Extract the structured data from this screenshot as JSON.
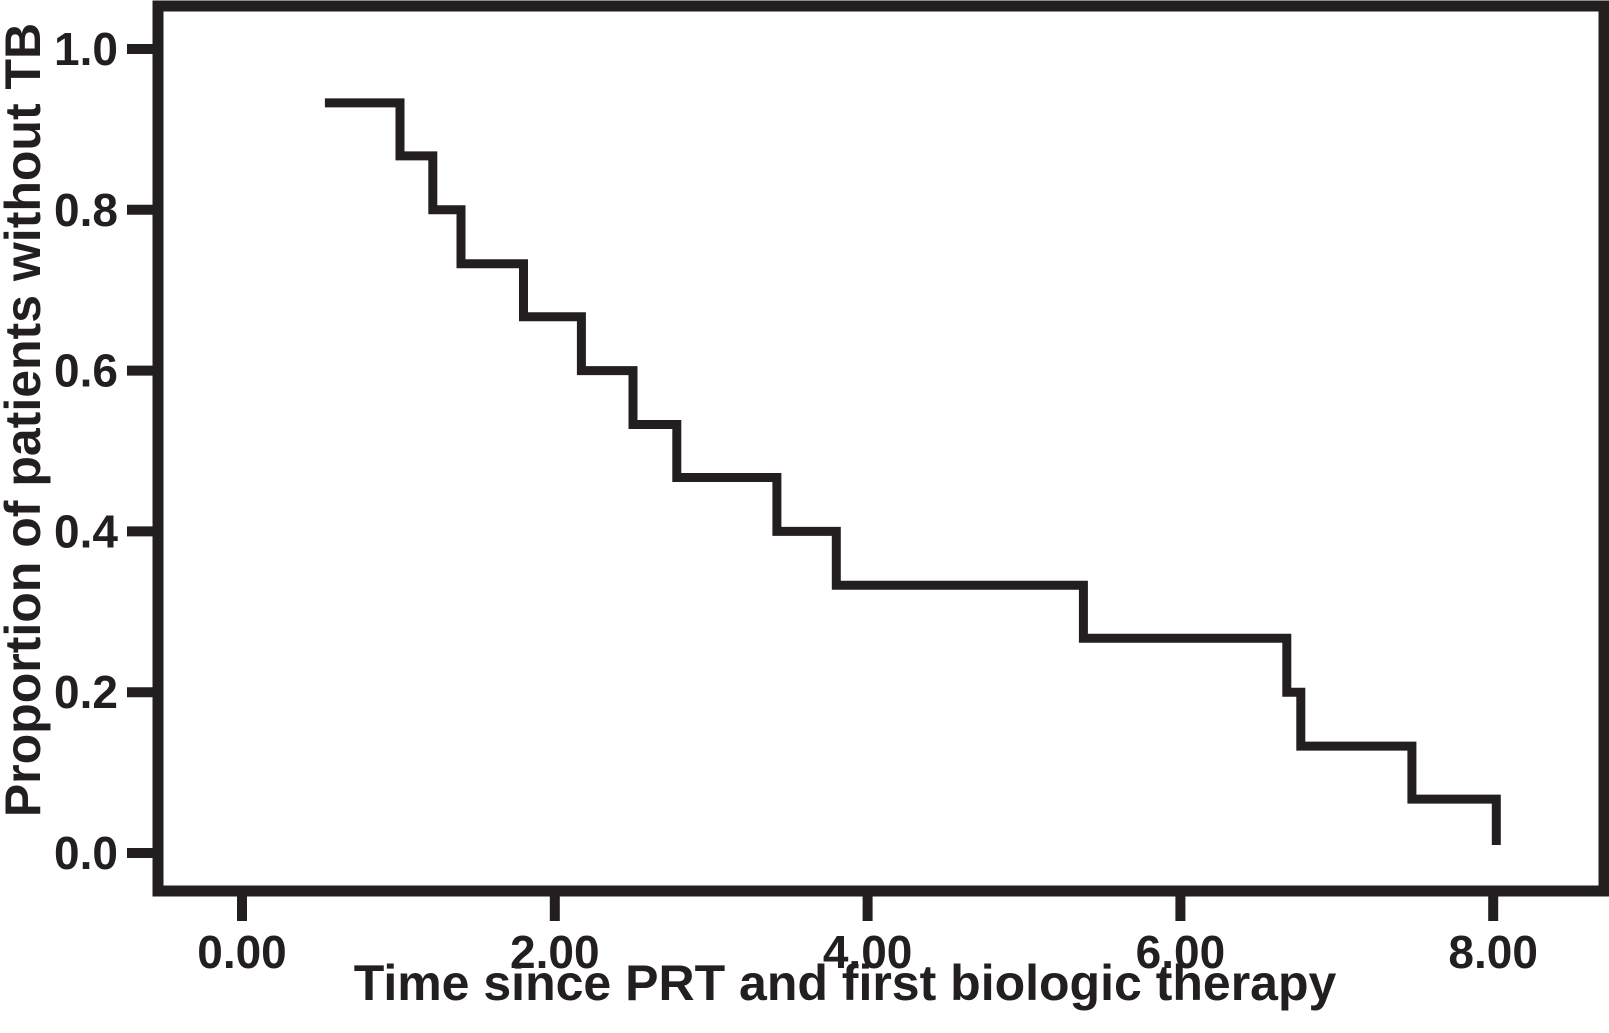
{
  "figure": {
    "background_color": "#ffffff",
    "frame_color": "#231f20",
    "curve_color": "#231f20"
  },
  "chart_data": {
    "type": "line",
    "subtype": "kaplan-meier-step",
    "title": "",
    "xlabel": "Time since PRT and first biologic therapy",
    "ylabel": "Proportion of patients without TB",
    "xlim": [
      -0.55,
      8.7
    ],
    "ylim": [
      -0.05,
      1.06
    ],
    "x_ticks": [
      0,
      2,
      4,
      6,
      8
    ],
    "x_tick_labels": [
      "0.00",
      "2.00",
      "4.00",
      "6.00",
      "8.00"
    ],
    "y_ticks": [
      0.0,
      0.2,
      0.4,
      0.6,
      0.8,
      1.0
    ],
    "y_tick_labels": [
      "0.0",
      "0.2",
      "0.4",
      "0.6",
      "0.8",
      "1.0"
    ],
    "grid": false,
    "legend": false,
    "series": [
      {
        "name": "Proportion of patients without TB",
        "start": {
          "x": 0.53,
          "y": 0.933
        },
        "steps": [
          {
            "x": 1.01,
            "y_after": 0.867
          },
          {
            "x": 1.22,
            "y_after": 0.8
          },
          {
            "x": 1.4,
            "y_after": 0.733
          },
          {
            "x": 1.8,
            "y_after": 0.667
          },
          {
            "x": 2.17,
            "y_after": 0.6
          },
          {
            "x": 2.5,
            "y_after": 0.533
          },
          {
            "x": 2.78,
            "y_after": 0.467
          },
          {
            "x": 3.42,
            "y_after": 0.4
          },
          {
            "x": 3.8,
            "y_after": 0.333
          },
          {
            "x": 5.38,
            "y_after": 0.267
          },
          {
            "x": 6.68,
            "y_after": 0.2
          },
          {
            "x": 6.77,
            "y_after": 0.133
          },
          {
            "x": 7.48,
            "y_after": 0.067
          },
          {
            "x": 8.02,
            "y_after": 0.01
          }
        ]
      }
    ]
  }
}
